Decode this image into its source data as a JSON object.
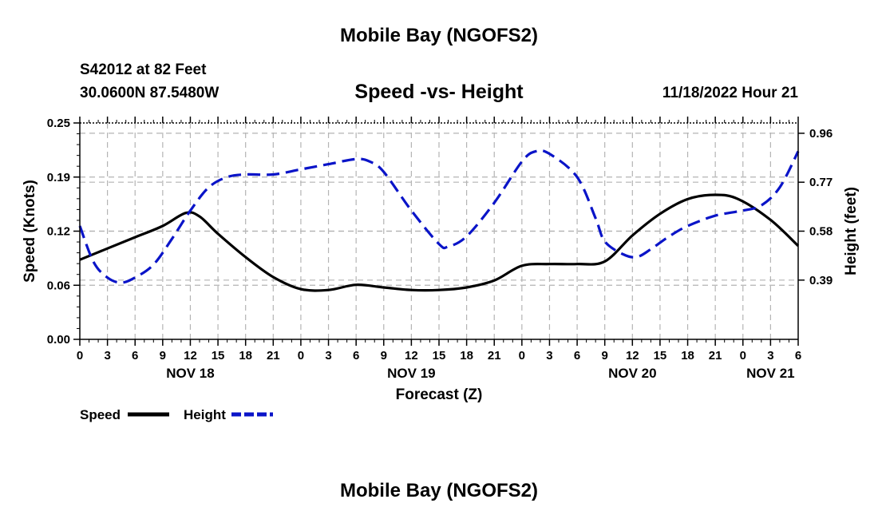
{
  "page": {
    "top_title": "Mobile Bay (NGOFS2)",
    "bottom_title": "Mobile Bay (NGOFS2)",
    "station_line1": "S42012 at 82 Feet",
    "station_line2": "30.0600N  87.5480W",
    "datetime": "11/18/2022 Hour 21"
  },
  "colors": {
    "speed": "#000000",
    "height": "#0a14c8",
    "grid": "#b4b4b4"
  },
  "chart_data": {
    "type": "line",
    "title": "Speed -vs- Height",
    "xlabel": "Forecast (Z)",
    "ylabel": "Speed (Knots)",
    "ylabel_right": "Height (feet)",
    "x_range_hours": [
      0,
      78
    ],
    "ylim": [
      0,
      0.25
    ],
    "ylim_right": [
      0.16,
      1.0
    ],
    "yticks": [
      "0.00",
      "0.06",
      "0.12",
      "0.19",
      "0.25"
    ],
    "yticks_values": [
      0,
      0.0625,
      0.125,
      0.1875,
      0.25
    ],
    "yticks_right": [
      "0.39",
      "0.58",
      "0.77",
      "0.96"
    ],
    "yticks_right_values": [
      0.39,
      0.58,
      0.77,
      0.96
    ],
    "xticks": [
      "0",
      "3",
      "6",
      "9",
      "12",
      "15",
      "18",
      "21",
      "0",
      "3",
      "6",
      "9",
      "12",
      "15",
      "18",
      "21",
      "0",
      "3",
      "6",
      "9",
      "12",
      "15",
      "18",
      "21",
      "0",
      "3",
      "6"
    ],
    "day_labels": [
      {
        "label": "NOV 18",
        "hour": 12
      },
      {
        "label": "NOV 19",
        "hour": 36
      },
      {
        "label": "NOV 20",
        "hour": 60
      },
      {
        "label": "NOV 21",
        "hour": 75
      }
    ],
    "series": [
      {
        "name": "Speed",
        "axis": "left",
        "style": "solid",
        "x": [
          0,
          3,
          6,
          9,
          11.5,
          13,
          15,
          18,
          21,
          24,
          27,
          30,
          33,
          36,
          39,
          42,
          45,
          48,
          51,
          54,
          57,
          60,
          63,
          66,
          69,
          71.5,
          75,
          78
        ],
        "y": [
          0.092,
          0.105,
          0.118,
          0.131,
          0.146,
          0.142,
          0.122,
          0.095,
          0.072,
          0.058,
          0.057,
          0.063,
          0.06,
          0.057,
          0.057,
          0.06,
          0.068,
          0.085,
          0.087,
          0.087,
          0.09,
          0.12,
          0.145,
          0.162,
          0.167,
          0.162,
          0.138,
          0.108
        ]
      },
      {
        "name": "Height",
        "axis": "right",
        "style": "dashed",
        "x": [
          0,
          1.5,
          3,
          4.5,
          6,
          8,
          10,
          12,
          14,
          16,
          18,
          21,
          24,
          27,
          30,
          31.5,
          33,
          36,
          39,
          40,
          42,
          45,
          48,
          49.5,
          51,
          54,
          56,
          57,
          59,
          60.5,
          62,
          64,
          66,
          69,
          72,
          74,
          76,
          78
        ],
        "y": [
          0.6,
          0.46,
          0.4,
          0.38,
          0.4,
          0.45,
          0.55,
          0.66,
          0.75,
          0.79,
          0.8,
          0.8,
          0.82,
          0.84,
          0.86,
          0.85,
          0.81,
          0.66,
          0.53,
          0.52,
          0.56,
          0.69,
          0.85,
          0.89,
          0.88,
          0.79,
          0.63,
          0.54,
          0.49,
          0.48,
          0.51,
          0.56,
          0.6,
          0.64,
          0.66,
          0.68,
          0.75,
          0.89
        ]
      }
    ],
    "legend": [
      {
        "label": "Speed",
        "style": "solid"
      },
      {
        "label": "Height",
        "style": "dashed"
      }
    ],
    "grid": true
  }
}
